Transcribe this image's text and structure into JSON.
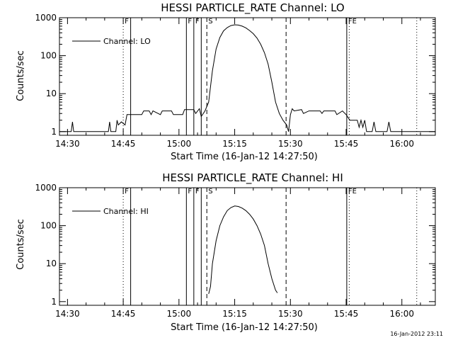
{
  "footer_timestamp": "16-Jan-2012 23:11",
  "chart_data": [
    {
      "type": "line",
      "title": "HESSI PARTICLE_RATE Channel: LO",
      "xlabel": "Start Time (16-Jan-12 14:27:50)",
      "ylabel": "Counts/sec",
      "yscale": "log",
      "xlim": [
        "14:27:50",
        "16:09:00"
      ],
      "ylim": [
        0.8,
        1000
      ],
      "x_ticks": [
        "14:30",
        "14:45",
        "15:00",
        "15:15",
        "15:30",
        "15:45",
        "16:00"
      ],
      "y_ticks": [
        "1",
        "10",
        "100",
        "1000"
      ],
      "legend_position": "top-left",
      "series": [
        {
          "name": "Channel: LO",
          "points": [
            [
              "14:27:50",
              1
            ],
            [
              "14:31:00",
              1
            ],
            [
              "14:31:20",
              1.8
            ],
            [
              "14:31:40",
              1
            ],
            [
              "14:41:00",
              1
            ],
            [
              "14:41:20",
              1.8
            ],
            [
              "14:41:40",
              1
            ],
            [
              "14:43:00",
              1
            ],
            [
              "14:43:20",
              2
            ],
            [
              "14:43:40",
              1.5
            ],
            [
              "14:44:30",
              1.8
            ],
            [
              "14:45:30",
              1.5
            ],
            [
              "14:46:00",
              2.8
            ],
            [
              "14:50:00",
              2.8
            ],
            [
              "14:50:30",
              3.5
            ],
            [
              "14:52:00",
              3.5
            ],
            [
              "14:52:30",
              2.8
            ],
            [
              "14:53:00",
              3.5
            ],
            [
              "14:55:00",
              2.8
            ],
            [
              "14:55:30",
              3.5
            ],
            [
              "14:58:00",
              3.5
            ],
            [
              "14:58:30",
              2.8
            ],
            [
              "15:01:00",
              2.8
            ],
            [
              "15:01:30",
              3.8
            ],
            [
              "15:04:00",
              3.8
            ],
            [
              "15:04:30",
              3.0
            ],
            [
              "15:05:30",
              4.0
            ],
            [
              "15:06:00",
              2.5
            ],
            [
              "15:07:00",
              3.5
            ],
            [
              "15:08:00",
              6
            ],
            [
              "15:09:00",
              40
            ],
            [
              "15:10:00",
              150
            ],
            [
              "15:11:00",
              300
            ],
            [
              "15:12:00",
              450
            ],
            [
              "15:13:00",
              550
            ],
            [
              "15:14:00",
              620
            ],
            [
              "15:15:00",
              650
            ],
            [
              "15:16:00",
              640
            ],
            [
              "15:17:00",
              600
            ],
            [
              "15:18:00",
              540
            ],
            [
              "15:19:00",
              460
            ],
            [
              "15:20:00",
              380
            ],
            [
              "15:21:00",
              290
            ],
            [
              "15:22:00",
              200
            ],
            [
              "15:23:00",
              120
            ],
            [
              "15:24:00",
              60
            ],
            [
              "15:25:00",
              20
            ],
            [
              "15:26:00",
              6
            ],
            [
              "15:27:00",
              3
            ],
            [
              "15:28:00",
              2
            ],
            [
              "15:29:00",
              1.5
            ],
            [
              "15:29:30",
              1.0
            ],
            [
              "15:30:00",
              2.8
            ],
            [
              "15:30:30",
              4.0
            ],
            [
              "15:31:00",
              3.5
            ],
            [
              "15:33:00",
              3.8
            ],
            [
              "15:33:30",
              3.0
            ],
            [
              "15:35:00",
              3.5
            ],
            [
              "15:38:00",
              3.5
            ],
            [
              "15:38:30",
              3.0
            ],
            [
              "15:39:00",
              3.5
            ],
            [
              "15:42:00",
              3.5
            ],
            [
              "15:42:30",
              2.8
            ],
            [
              "15:44:00",
              3.5
            ],
            [
              "15:45:00",
              2.8
            ],
            [
              "15:46:00",
              2.0
            ],
            [
              "15:48:00",
              2.0
            ],
            [
              "15:48:30",
              1.3
            ],
            [
              "15:49:00",
              2.0
            ],
            [
              "15:49:30",
              1.3
            ],
            [
              "15:50:00",
              2.0
            ],
            [
              "15:50:30",
              1
            ],
            [
              "15:52:00",
              1
            ],
            [
              "15:52:30",
              1.8
            ],
            [
              "15:53:00",
              1
            ],
            [
              "15:56:00",
              1
            ],
            [
              "15:56:30",
              1.8
            ],
            [
              "15:57:00",
              1
            ],
            [
              "16:09:00",
              1
            ]
          ]
        }
      ],
      "markers": [
        {
          "label": "F",
          "time": "14:45:00",
          "style": "dotted"
        },
        {
          "label": "",
          "time": "14:47:00",
          "style": "solid"
        },
        {
          "label": "F",
          "time": "15:02:00",
          "style": "solid"
        },
        {
          "label": "F",
          "time": "15:04:00",
          "style": "solid"
        },
        {
          "label": "",
          "time": "15:06:00",
          "style": "solid"
        },
        {
          "label": "S",
          "time": "15:07:30",
          "style": "dashed"
        },
        {
          "label": "",
          "time": "15:28:50",
          "style": "dashed"
        },
        {
          "label": "FE",
          "time": "15:45:10",
          "style": "solid"
        },
        {
          "label": "",
          "time": "15:45:50",
          "style": "dotted"
        },
        {
          "label": "",
          "time": "16:04:00",
          "style": "dotted"
        }
      ]
    },
    {
      "type": "line",
      "title": "HESSI PARTICLE_RATE Channel: HI",
      "xlabel": "Start Time (16-Jan-12 14:27:50)",
      "ylabel": "Counts/sec",
      "yscale": "log",
      "xlim": [
        "14:27:50",
        "16:09:00"
      ],
      "ylim": [
        0.8,
        1000
      ],
      "x_ticks": [
        "14:30",
        "14:45",
        "15:00",
        "15:15",
        "15:30",
        "15:45",
        "16:00"
      ],
      "y_ticks": [
        "1",
        "10",
        "100",
        "1000"
      ],
      "legend_position": "top-left",
      "series": [
        {
          "name": "Channel: HI",
          "points": [
            [
              "15:08:00",
              1.6
            ],
            [
              "15:08:30",
              2.5
            ],
            [
              "15:09:00",
              10
            ],
            [
              "15:10:00",
              40
            ],
            [
              "15:11:00",
              100
            ],
            [
              "15:12:00",
              170
            ],
            [
              "15:13:00",
              250
            ],
            [
              "15:14:00",
              300
            ],
            [
              "15:15:00",
              330
            ],
            [
              "15:16:00",
              320
            ],
            [
              "15:17:00",
              290
            ],
            [
              "15:18:00",
              250
            ],
            [
              "15:19:00",
              200
            ],
            [
              "15:20:00",
              150
            ],
            [
              "15:21:00",
              100
            ],
            [
              "15:22:00",
              60
            ],
            [
              "15:23:00",
              30
            ],
            [
              "15:24:00",
              10
            ],
            [
              "15:25:00",
              4
            ],
            [
              "15:26:00",
              2
            ],
            [
              "15:26:30",
              1.7
            ]
          ]
        }
      ],
      "markers": [
        {
          "label": "F",
          "time": "14:45:00",
          "style": "dotted"
        },
        {
          "label": "",
          "time": "14:47:00",
          "style": "solid"
        },
        {
          "label": "F",
          "time": "15:02:00",
          "style": "solid"
        },
        {
          "label": "F",
          "time": "15:04:00",
          "style": "solid"
        },
        {
          "label": "",
          "time": "15:06:00",
          "style": "solid"
        },
        {
          "label": "S",
          "time": "15:07:30",
          "style": "dashed"
        },
        {
          "label": "",
          "time": "15:28:50",
          "style": "dashed"
        },
        {
          "label": "FE",
          "time": "15:45:10",
          "style": "solid"
        },
        {
          "label": "",
          "time": "15:45:50",
          "style": "dotted"
        },
        {
          "label": "",
          "time": "16:04:00",
          "style": "dotted"
        }
      ]
    }
  ]
}
